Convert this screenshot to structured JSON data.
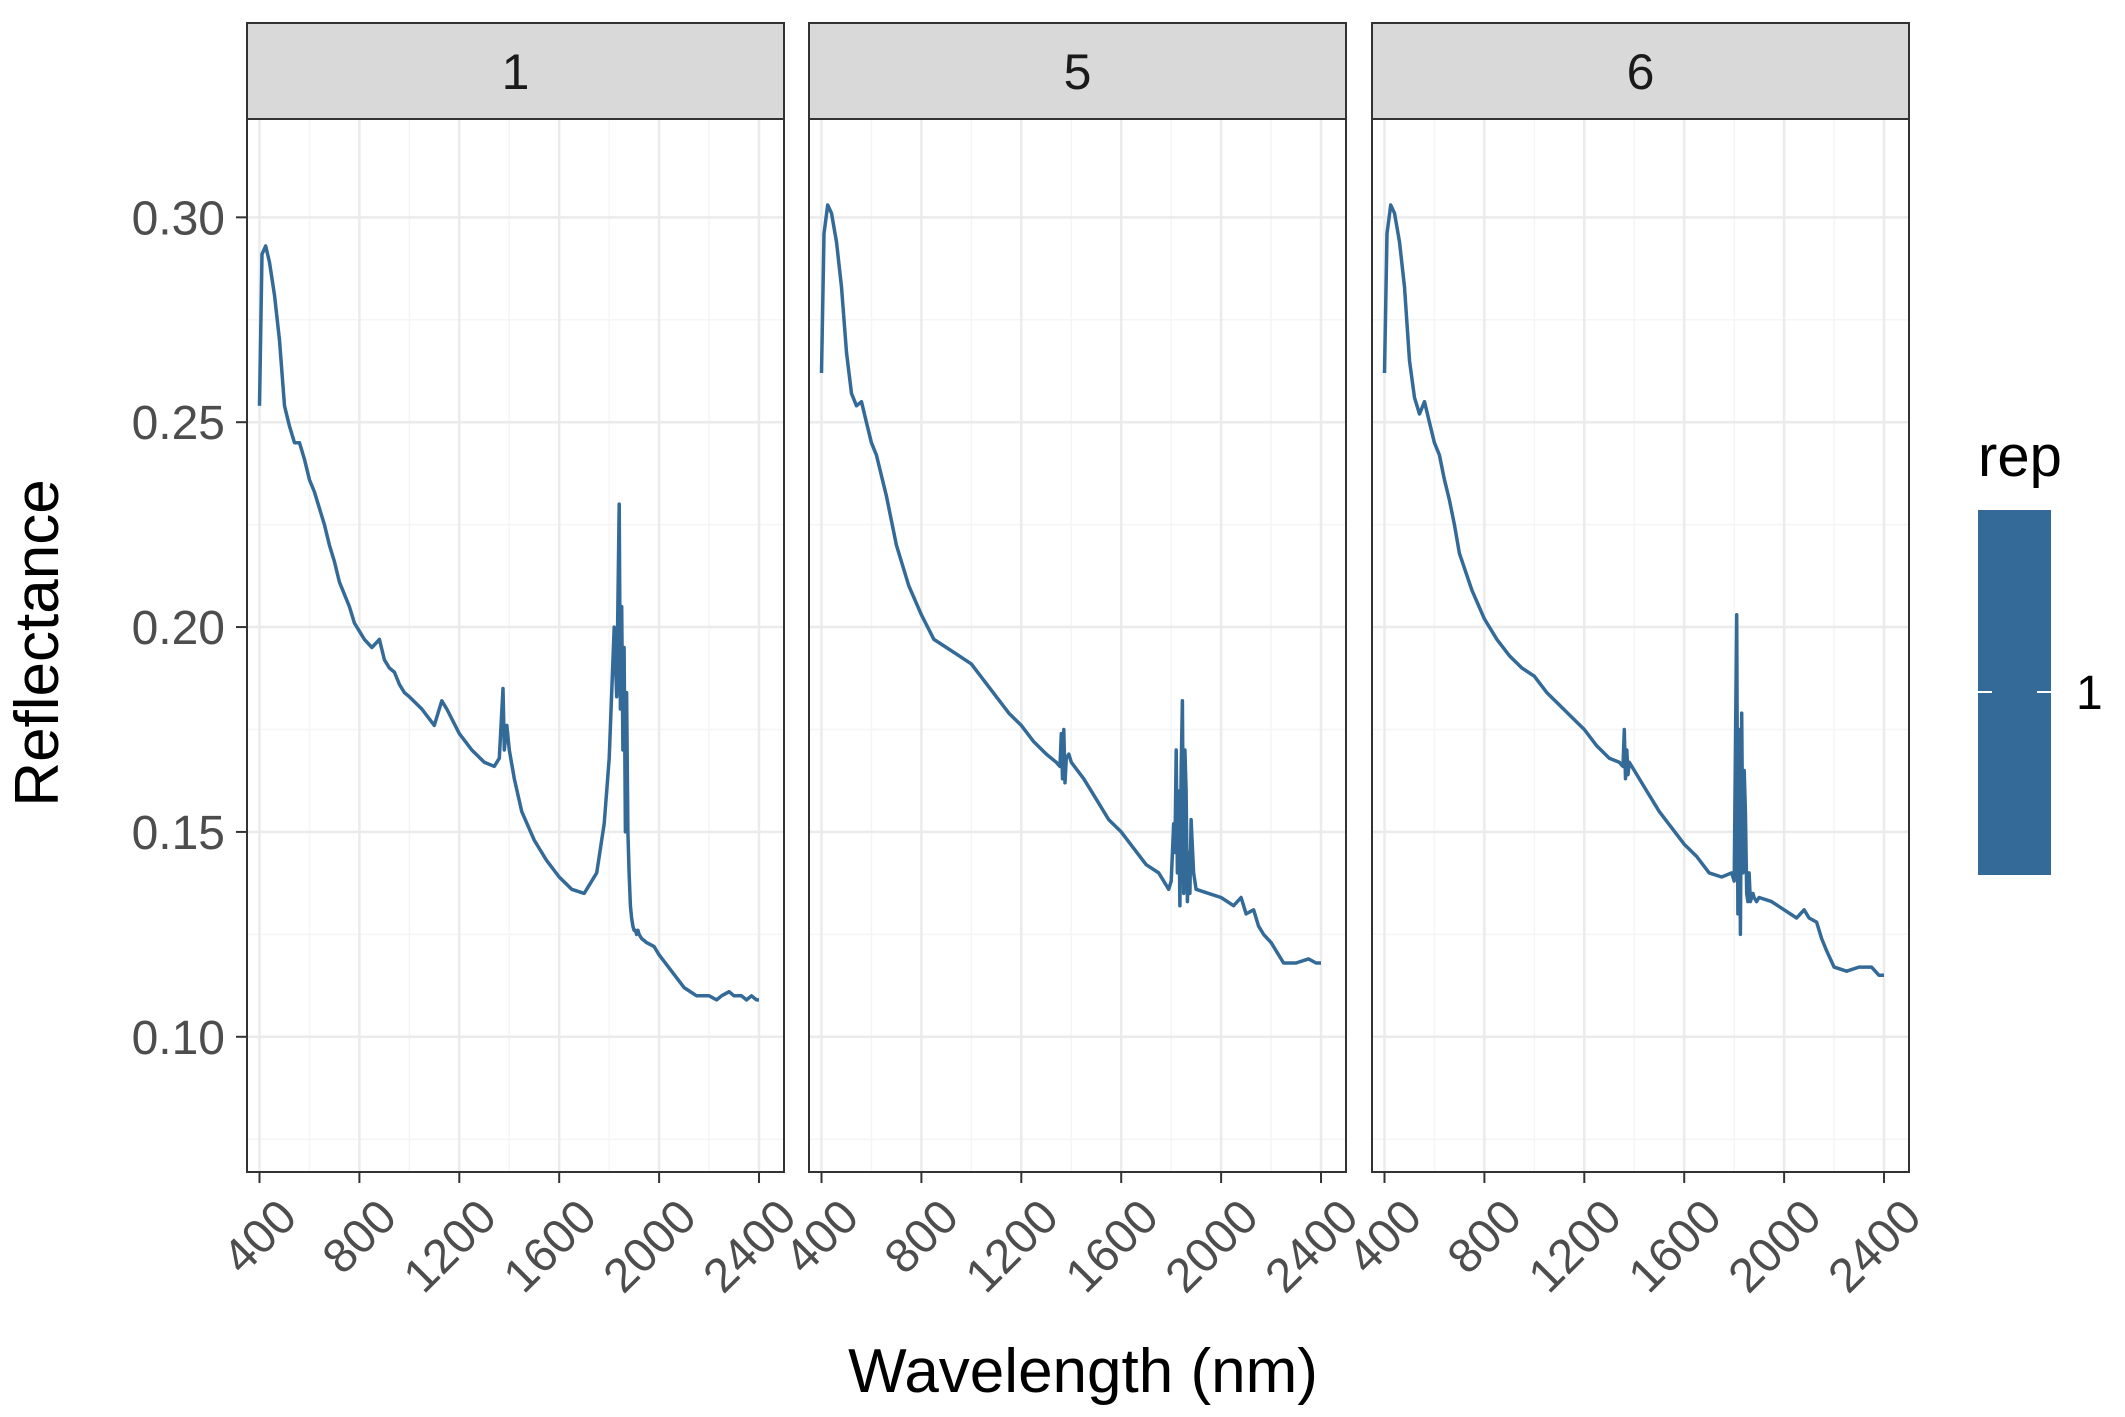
{
  "chart_data": {
    "type": "line",
    "xlabel": "Wavelength (nm)",
    "ylabel": "Reflectance",
    "xlim": [
      350,
      2500
    ],
    "ylim": [
      0.067,
      0.324
    ],
    "x_ticks": [
      400,
      800,
      1200,
      1600,
      2000,
      2400
    ],
    "y_ticks": [
      0.1,
      0.15,
      0.2,
      0.25,
      0.3
    ],
    "y_tick_labels": [
      "0.10",
      "0.15",
      "0.20",
      "0.25",
      "0.30"
    ],
    "x_tick_labels": [
      "400",
      "800",
      "1200",
      "1600",
      "2000",
      "2400"
    ],
    "grid": true,
    "legend": {
      "title": "rep",
      "position": "right",
      "entries": [
        "1"
      ]
    },
    "colors": {
      "line": "#336a98",
      "strip": "#d9d9d9",
      "grid_major": "#ebebeb",
      "grid_minor": "#f5f5f5"
    },
    "facets": [
      {
        "label": "1",
        "series": [
          {
            "name": "1",
            "x": [
              400,
              410,
              425,
              440,
              460,
              480,
              500,
              520,
              540,
              560,
              580,
              600,
              620,
              640,
              660,
              680,
              700,
              720,
              740,
              760,
              780,
              800,
              820,
              850,
              880,
              900,
              920,
              940,
              960,
              980,
              1000,
              1050,
              1100,
              1130,
              1150,
              1200,
              1250,
              1300,
              1340,
              1360,
              1375,
              1380,
              1390,
              1400,
              1420,
              1450,
              1500,
              1550,
              1600,
              1650,
              1700,
              1750,
              1780,
              1800,
              1820,
              1830,
              1840,
              1845,
              1850,
              1855,
              1860,
              1865,
              1870,
              1875,
              1880,
              1885,
              1890,
              1895,
              1900,
              1905,
              1910,
              1915,
              1920,
              1930,
              1950,
              1980,
              2000,
              2050,
              2100,
              2150,
              2200,
              2230,
              2250,
              2280,
              2300,
              2330,
              2350,
              2370,
              2390,
              2400
            ],
            "values": [
              0.254,
              0.291,
              0.293,
              0.289,
              0.281,
              0.27,
              0.254,
              0.249,
              0.245,
              0.245,
              0.241,
              0.236,
              0.233,
              0.229,
              0.225,
              0.22,
              0.216,
              0.211,
              0.208,
              0.205,
              0.201,
              0.199,
              0.197,
              0.195,
              0.197,
              0.192,
              0.19,
              0.189,
              0.186,
              0.184,
              0.183,
              0.18,
              0.176,
              0.182,
              0.18,
              0.174,
              0.17,
              0.167,
              0.166,
              0.168,
              0.185,
              0.17,
              0.176,
              0.17,
              0.163,
              0.155,
              0.148,
              0.143,
              0.139,
              0.136,
              0.135,
              0.14,
              0.152,
              0.168,
              0.2,
              0.183,
              0.23,
              0.18,
              0.205,
              0.17,
              0.195,
              0.15,
              0.184,
              0.15,
              0.14,
              0.132,
              0.129,
              0.127,
              0.126,
              0.126,
              0.125,
              0.126,
              0.125,
              0.124,
              0.123,
              0.122,
              0.12,
              0.116,
              0.112,
              0.11,
              0.11,
              0.109,
              0.11,
              0.111,
              0.11,
              0.11,
              0.109,
              0.11,
              0.109,
              0.109
            ]
          }
        ]
      },
      {
        "label": "5",
        "series": [
          {
            "name": "1",
            "x": [
              400,
              410,
              425,
              440,
              460,
              480,
              500,
              520,
              540,
              560,
              580,
              600,
              620,
              640,
              660,
              680,
              700,
              750,
              800,
              850,
              900,
              950,
              1000,
              1050,
              1100,
              1150,
              1200,
              1250,
              1300,
              1340,
              1355,
              1360,
              1365,
              1370,
              1375,
              1380,
              1390,
              1400,
              1450,
              1500,
              1550,
              1600,
              1650,
              1700,
              1750,
              1790,
              1800,
              1810,
              1815,
              1820,
              1825,
              1830,
              1835,
              1840,
              1845,
              1850,
              1855,
              1860,
              1865,
              1870,
              1875,
              1880,
              1890,
              1900,
              1950,
              2000,
              2050,
              2080,
              2100,
              2130,
              2150,
              2170,
              2200,
              2250,
              2300,
              2350,
              2380,
              2400
            ],
            "values": [
              0.262,
              0.296,
              0.303,
              0.301,
              0.294,
              0.283,
              0.267,
              0.257,
              0.254,
              0.255,
              0.25,
              0.245,
              0.242,
              0.237,
              0.232,
              0.226,
              0.22,
              0.21,
              0.203,
              0.197,
              0.195,
              0.193,
              0.191,
              0.187,
              0.183,
              0.179,
              0.176,
              0.172,
              0.169,
              0.167,
              0.166,
              0.174,
              0.163,
              0.175,
              0.162,
              0.168,
              0.169,
              0.167,
              0.163,
              0.158,
              0.153,
              0.15,
              0.146,
              0.142,
              0.14,
              0.136,
              0.138,
              0.152,
              0.145,
              0.17,
              0.14,
              0.16,
              0.132,
              0.166,
              0.182,
              0.135,
              0.17,
              0.16,
              0.133,
              0.145,
              0.135,
              0.153,
              0.14,
              0.136,
              0.135,
              0.134,
              0.132,
              0.134,
              0.13,
              0.131,
              0.127,
              0.125,
              0.123,
              0.118,
              0.118,
              0.119,
              0.118,
              0.118
            ]
          }
        ]
      },
      {
        "label": "6",
        "series": [
          {
            "name": "1",
            "x": [
              400,
              410,
              425,
              440,
              460,
              480,
              500,
              520,
              540,
              560,
              580,
              600,
              620,
              640,
              660,
              680,
              700,
              750,
              800,
              850,
              900,
              950,
              1000,
              1050,
              1100,
              1150,
              1200,
              1250,
              1300,
              1340,
              1355,
              1360,
              1365,
              1370,
              1375,
              1380,
              1390,
              1400,
              1450,
              1500,
              1550,
              1600,
              1650,
              1700,
              1750,
              1790,
              1800,
              1810,
              1815,
              1820,
              1825,
              1830,
              1835,
              1840,
              1845,
              1850,
              1855,
              1860,
              1865,
              1870,
              1875,
              1880,
              1890,
              1900,
              1950,
              2000,
              2050,
              2080,
              2100,
              2130,
              2150,
              2170,
              2200,
              2250,
              2300,
              2350,
              2380,
              2400
            ],
            "values": [
              0.262,
              0.296,
              0.303,
              0.301,
              0.294,
              0.283,
              0.265,
              0.256,
              0.252,
              0.255,
              0.25,
              0.245,
              0.242,
              0.236,
              0.231,
              0.225,
              0.218,
              0.209,
              0.202,
              0.197,
              0.193,
              0.19,
              0.188,
              0.184,
              0.181,
              0.178,
              0.175,
              0.171,
              0.168,
              0.167,
              0.166,
              0.175,
              0.163,
              0.17,
              0.164,
              0.167,
              0.166,
              0.165,
              0.16,
              0.155,
              0.151,
              0.147,
              0.144,
              0.14,
              0.139,
              0.14,
              0.138,
              0.203,
              0.13,
              0.175,
              0.125,
              0.179,
              0.14,
              0.165,
              0.155,
              0.135,
              0.133,
              0.14,
              0.133,
              0.134,
              0.135,
              0.134,
              0.133,
              0.134,
              0.133,
              0.131,
              0.129,
              0.131,
              0.129,
              0.128,
              0.124,
              0.121,
              0.117,
              0.116,
              0.117,
              0.117,
              0.115,
              0.115
            ]
          }
        ]
      }
    ]
  }
}
